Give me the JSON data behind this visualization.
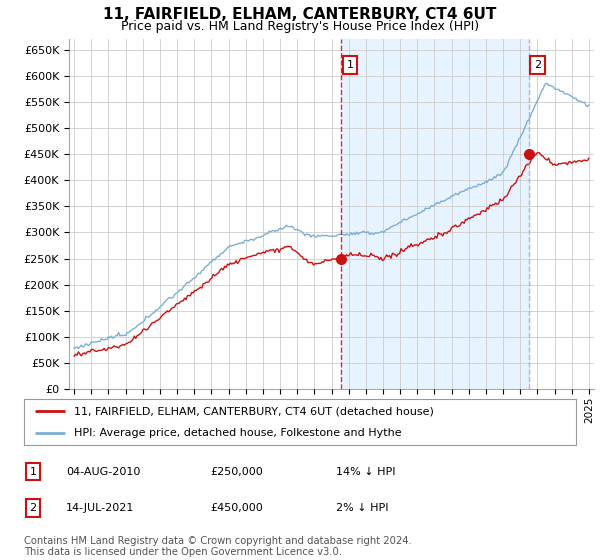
{
  "title": "11, FAIRFIELD, ELHAM, CANTERBURY, CT4 6UT",
  "subtitle": "Price paid vs. HM Land Registry's House Price Index (HPI)",
  "ylim": [
    0,
    670000
  ],
  "yticks": [
    0,
    50000,
    100000,
    150000,
    200000,
    250000,
    300000,
    350000,
    400000,
    450000,
    500000,
    550000,
    600000,
    650000
  ],
  "ytick_labels": [
    "£0",
    "£50K",
    "£100K",
    "£150K",
    "£200K",
    "£250K",
    "£300K",
    "£350K",
    "£400K",
    "£450K",
    "£500K",
    "£550K",
    "£600K",
    "£650K"
  ],
  "hpi_color": "#7bafd4",
  "price_color": "#cc1111",
  "vline1_color": "#cc1111",
  "vline1_style": "--",
  "vline2_color": "#aaaacc",
  "vline2_style": "--",
  "shade_color": "#ddeeff",
  "point1_year": 2010.58,
  "point1_price": 250000,
  "point1_label": "1",
  "point2_year": 2021.53,
  "point2_price": 450000,
  "point2_label": "2",
  "legend_red_label": "11, FAIRFIELD, ELHAM, CANTERBURY, CT4 6UT (detached house)",
  "legend_blue_label": "HPI: Average price, detached house, Folkestone and Hythe",
  "table_row1": [
    "1",
    "04-AUG-2010",
    "£250,000",
    "14% ↓ HPI"
  ],
  "table_row2": [
    "2",
    "14-JUL-2021",
    "£450,000",
    "2% ↓ HPI"
  ],
  "footer": "Contains HM Land Registry data © Crown copyright and database right 2024.\nThis data is licensed under the Open Government Licence v3.0.",
  "background_color": "#ffffff",
  "grid_color": "#cccccc",
  "title_fontsize": 11,
  "subtitle_fontsize": 9
}
